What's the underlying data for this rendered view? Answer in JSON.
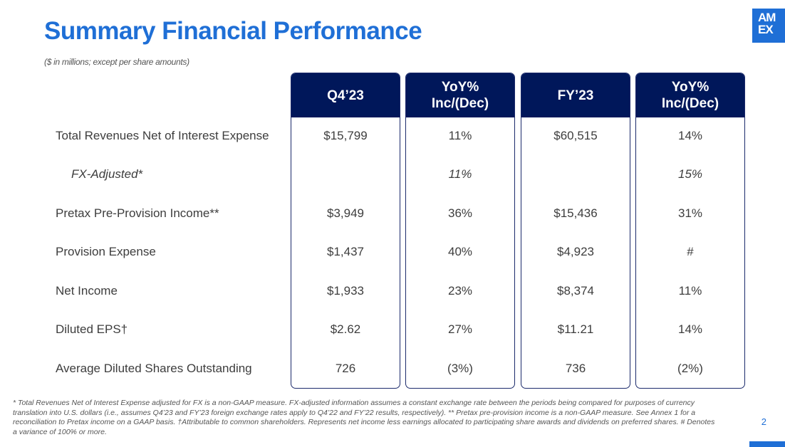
{
  "title": "Summary Financial Performance",
  "subtitle": "($ in millions; except per share amounts)",
  "logo": {
    "line1": "AM",
    "line2": "EX"
  },
  "columns": [
    {
      "line1": "Q4’23",
      "line2": ""
    },
    {
      "line1": "YoY%",
      "line2": "Inc/(Dec)"
    },
    {
      "line1": "FY’23",
      "line2": ""
    },
    {
      "line1": "YoY%",
      "line2": "Inc/(Dec)"
    }
  ],
  "rows": [
    {
      "label": "Total Revenues Net of Interest Expense",
      "values": [
        "$15,799",
        "11%",
        "$60,515",
        "14%"
      ]
    },
    {
      "label": "FX-Adjusted*",
      "values": [
        "",
        "11%",
        "",
        "15%"
      ]
    },
    {
      "label": "Pretax Pre-Provision Income**",
      "values": [
        "$3,949",
        "36%",
        "$15,436",
        "31%"
      ]
    },
    {
      "label": "Provision Expense",
      "values": [
        "$1,437",
        "40%",
        "$4,923",
        "#"
      ]
    },
    {
      "label": "Net Income",
      "values": [
        "$1,933",
        "23%",
        "$8,374",
        "11%"
      ]
    },
    {
      "label": "Diluted EPS†",
      "values": [
        "$2.62",
        "27%",
        "$11.21",
        "14%"
      ]
    },
    {
      "label": "Average Diluted Shares Outstanding",
      "values": [
        "726",
        "(3%)",
        "736",
        "(2%)"
      ]
    }
  ],
  "footnote": "* Total Revenues Net of Interest Expense adjusted for FX is a non-GAAP measure. FX-adjusted information assumes a constant exchange rate between the periods being compared for purposes of currency translation into U.S. dollars (i.e., assumes Q4’23 and FY’23 foreign exchange rates apply to Q4’22 and FY’22 results, respectively). ** Pretax pre-provision income is a non-GAAP measure. See Annex 1 for a reconciliation to Pretax income on a GAAP basis. †Attributable to common shareholders. Represents net income less earnings allocated to participating share awards and dividends on preferred shares. # Denotes a variance of 100% or more.",
  "page_number": "2",
  "colors": {
    "title_blue": "#1f6fd6",
    "header_navy": "#00175a"
  }
}
